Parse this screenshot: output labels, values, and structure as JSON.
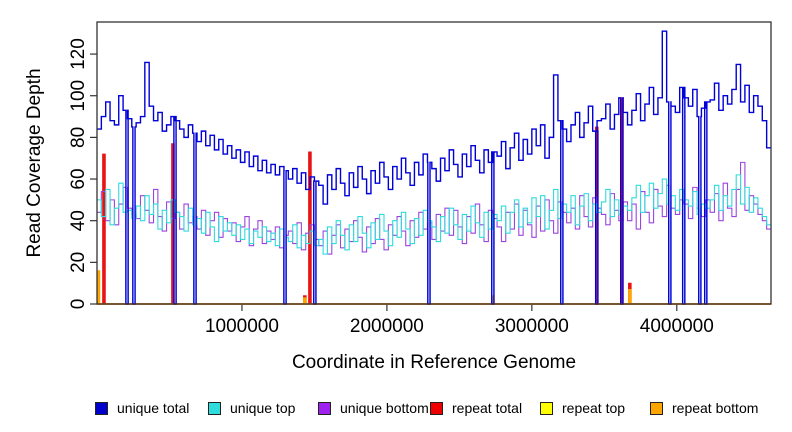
{
  "chart_data": {
    "type": "line",
    "subtype": "step",
    "title": "",
    "xlabel": "Coordinate in Reference Genome",
    "ylabel": "Read Coverage Depth",
    "xlim": [
      0,
      4650000
    ],
    "ylim": [
      0,
      135.4
    ],
    "x_ticks": [
      1000000,
      2000000,
      3000000,
      4000000
    ],
    "x_tick_labels": [
      "1000000",
      "2000000",
      "3000000",
      "4000000"
    ],
    "y_ticks": [
      0,
      20,
      40,
      60,
      80,
      100,
      120
    ],
    "y_tick_labels": [
      "0",
      "20",
      "40",
      "60",
      "80",
      "100",
      "120"
    ],
    "grid": false,
    "legend_position": "bottom",
    "bin_size": 30000,
    "coverage_gaps": [
      207000,
      255000,
      538000,
      676000,
      1297000,
      1503000,
      2290000,
      2731000,
      3207000,
      3448000,
      3621000,
      3952000,
      4048000,
      4159000,
      4200000
    ],
    "series": [
      {
        "name": "unique total",
        "color": "#0000D8",
        "width": 1.4,
        "style": "step",
        "uses_gaps": true,
        "values": [
          84,
          90,
          97,
          88,
          86,
          100,
          93,
          89,
          85,
          87,
          90,
          116,
          95,
          88,
          92,
          83,
          86,
          90,
          88,
          84,
          80,
          86,
          82,
          78,
          83,
          76,
          81,
          74,
          79,
          72,
          76,
          70,
          74,
          68,
          73,
          66,
          71,
          64,
          69,
          63,
          67,
          62,
          66,
          64,
          60,
          65,
          58,
          63,
          55,
          61,
          59,
          57,
          48,
          62,
          55,
          65,
          58,
          52,
          63,
          56,
          66,
          60,
          53,
          64,
          58,
          68,
          61,
          55,
          66,
          60,
          70,
          63,
          57,
          68,
          62,
          72,
          68,
          65,
          59,
          70,
          64,
          74,
          67,
          61,
          72,
          66,
          76,
          69,
          63,
          74,
          68,
          73,
          71,
          78,
          65,
          75,
          82,
          69,
          79,
          72,
          84,
          76,
          86,
          70,
          80,
          110,
          88,
          84,
          78,
          86,
          92,
          80,
          87,
          95,
          83,
          88,
          89,
          96,
          84,
          91,
          99,
          92,
          86,
          93,
          101,
          88,
          96,
          104,
          91,
          99,
          131,
          97,
          95,
          92,
          104,
          99,
          95,
          103,
          90,
          94,
          97,
          98,
          106,
          93,
          100,
          96,
          103,
          115,
          97,
          105,
          92,
          100,
          95,
          88,
          75
        ]
      },
      {
        "name": "unique top",
        "color": "#2FDCDC",
        "width": 1.1,
        "style": "step",
        "uses_gaps": true,
        "values": [
          50,
          42,
          55,
          38,
          46,
          58,
          44,
          45,
          41,
          47,
          40,
          52,
          43,
          48,
          36,
          45,
          39,
          50,
          44,
          42,
          35,
          46,
          38,
          41,
          34,
          44,
          37,
          30,
          42,
          35,
          39,
          33,
          38,
          31,
          36,
          29,
          35,
          32,
          37,
          30,
          34,
          28,
          36,
          32,
          30,
          38,
          27,
          33,
          29,
          35,
          28,
          31,
          24,
          37,
          29,
          40,
          33,
          26,
          38,
          30,
          42,
          34,
          27,
          39,
          31,
          43,
          35,
          28,
          40,
          32,
          44,
          36,
          29,
          41,
          33,
          45,
          40,
          37,
          30,
          42,
          34,
          46,
          38,
          31,
          43,
          35,
          47,
          39,
          32,
          44,
          36,
          43,
          40,
          47,
          34,
          44,
          50,
          37,
          46,
          39,
          51,
          42,
          52,
          36,
          45,
          55,
          41,
          48,
          44,
          52,
          38,
          47,
          53,
          40,
          48,
          44,
          49,
          55,
          42,
          50,
          43,
          47,
          45,
          51,
          57,
          44,
          52,
          58,
          46,
          53,
          60,
          48,
          52,
          45,
          55,
          50,
          47,
          54,
          43,
          48,
          46,
          50,
          57,
          45,
          52,
          47,
          55,
          62,
          48,
          56,
          44,
          51,
          46,
          42,
          38
        ]
      },
      {
        "name": "unique bottom",
        "color": "#9B45E0",
        "width": 1.1,
        "style": "step",
        "uses_gaps": true,
        "values": [
          44,
          54,
          40,
          50,
          38,
          48,
          56,
          46,
          43,
          41,
          52,
          45,
          39,
          55,
          42,
          35,
          49,
          41,
          44,
          36,
          48,
          39,
          42,
          36,
          45,
          33,
          40,
          44,
          32,
          41,
          35,
          39,
          30,
          37,
          42,
          28,
          36,
          40,
          29,
          35,
          31,
          37,
          27,
          33,
          35,
          29,
          39,
          26,
          34,
          38,
          31,
          28,
          35,
          24,
          33,
          38,
          27,
          36,
          30,
          40,
          32,
          25,
          37,
          29,
          41,
          31,
          26,
          38,
          33,
          42,
          35,
          28,
          40,
          32,
          44,
          36,
          39,
          31,
          43,
          35,
          46,
          33,
          45,
          37,
          29,
          42,
          34,
          48,
          38,
          30,
          45,
          41,
          37,
          30,
          44,
          36,
          48,
          33,
          45,
          38,
          32,
          47,
          35,
          50,
          40,
          34,
          49,
          44,
          39,
          46,
          36,
          52,
          42,
          37,
          51,
          46,
          43,
          38,
          53,
          45,
          40,
          49,
          40,
          48,
          36,
          54,
          44,
          39,
          55,
          47,
          42,
          57,
          46,
          43,
          50,
          48,
          41,
          56,
          46,
          42,
          50,
          44,
          53,
          40,
          58,
          46,
          42,
          55,
          68,
          45,
          52,
          48,
          43,
          40,
          36
        ]
      },
      {
        "name": "repeat total",
        "color": "#E81414",
        "width": 1.4,
        "style": "baseline-spikes",
        "baseline": 0,
        "spikes": [
          {
            "x": 48000,
            "v": 72
          },
          {
            "x": 524000,
            "v": 77
          },
          {
            "x": 1434000,
            "v": 4
          },
          {
            "x": 1469000,
            "v": 73
          },
          {
            "x": 3448000,
            "v": 85
          },
          {
            "x": 3621000,
            "v": 99
          },
          {
            "x": 3676000,
            "v": 10
          }
        ]
      },
      {
        "name": "repeat top",
        "color": "#FFFF00",
        "width": 1.2,
        "style": "baseline-spikes",
        "baseline": 0,
        "spikes": []
      },
      {
        "name": "repeat bottom",
        "color": "#FFA500",
        "width": 1.6,
        "style": "baseline-spikes",
        "baseline": 0,
        "spikes": [
          {
            "x": 10000,
            "v": 16
          },
          {
            "x": 1434000,
            "v": 3
          },
          {
            "x": 2731000,
            "v": 4
          },
          {
            "x": 3676000,
            "v": 7
          }
        ]
      }
    ]
  },
  "legend": {
    "items": [
      {
        "label": "unique total",
        "color": "#0000CC"
      },
      {
        "label": "unique top",
        "color": "#2FDCDC"
      },
      {
        "label": "unique bottom",
        "color": "#A020F0"
      },
      {
        "label": "repeat total",
        "color": "#EE0000"
      },
      {
        "label": "repeat top",
        "color": "#FFFF00"
      },
      {
        "label": "repeat bottom",
        "color": "#FFA500"
      }
    ]
  }
}
